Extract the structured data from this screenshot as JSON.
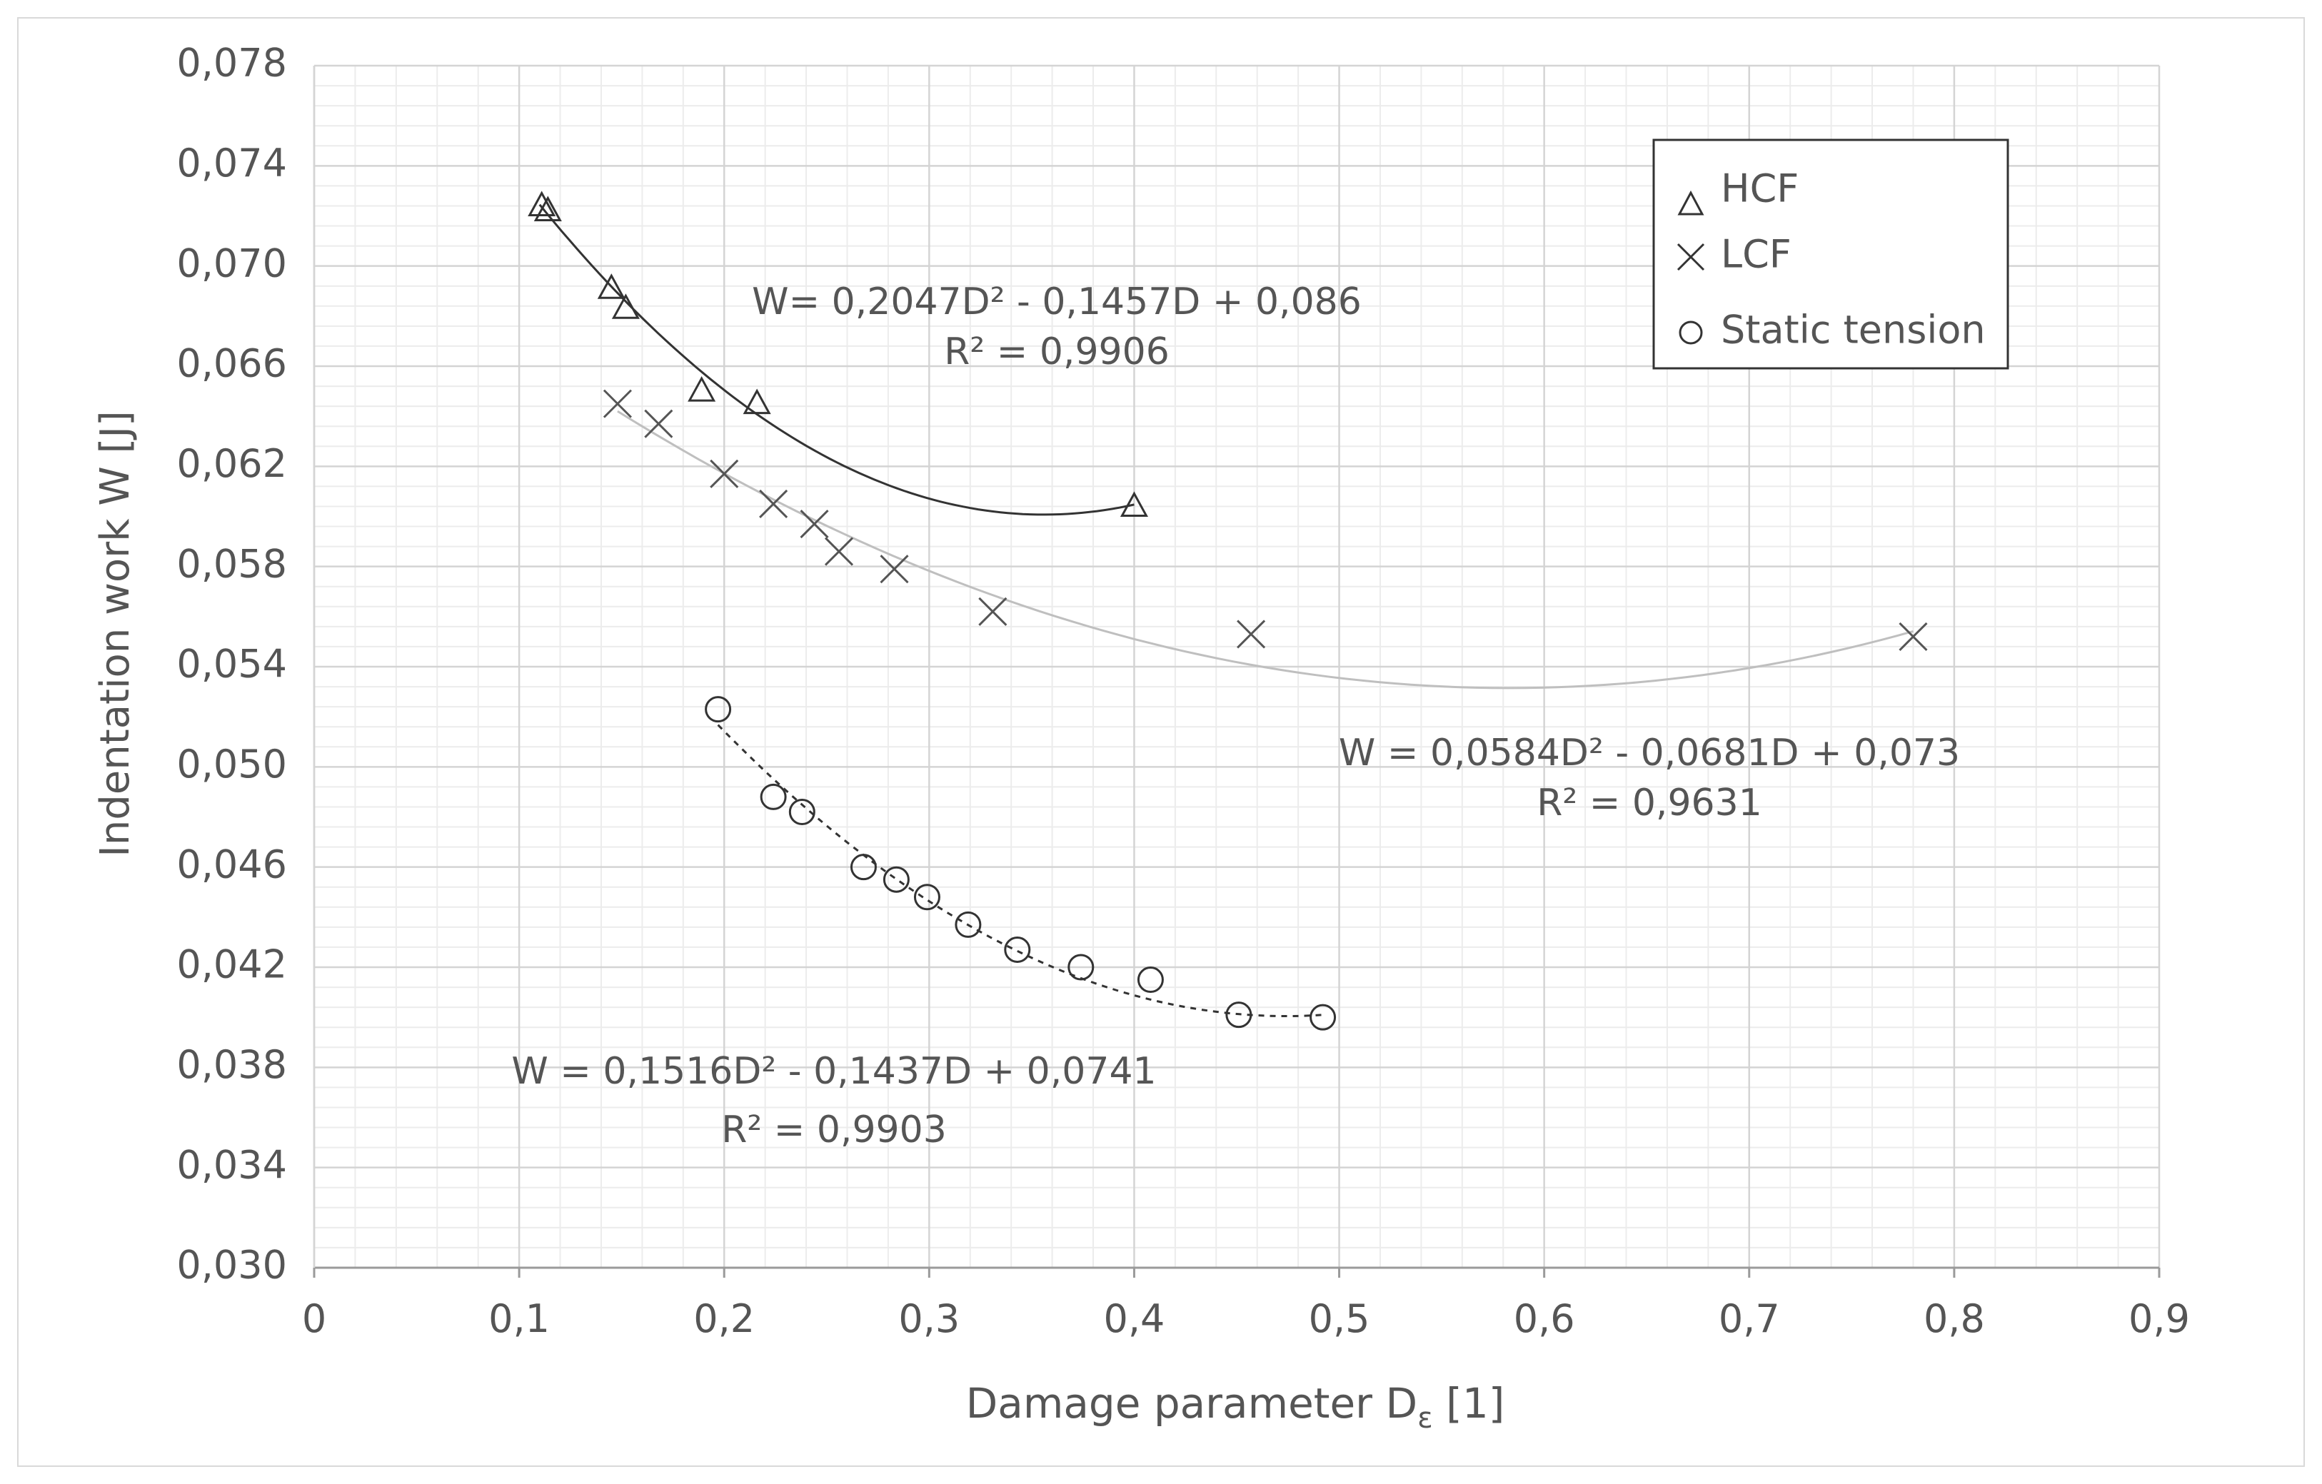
{
  "chart_data": {
    "type": "scatter",
    "xlabel_main": "Damage parameter D",
    "xlabel_sub": "ε",
    "xlabel_tail": " [1]",
    "ylabel": "Indentation work W [J]",
    "xlim": [
      0,
      0.9
    ],
    "ylim": [
      0.03,
      0.078
    ],
    "x_ticks": [
      0,
      0.1,
      0.2,
      0.3,
      0.4,
      0.5,
      0.6,
      0.7,
      0.8,
      0.9
    ],
    "x_tick_labels": [
      "0",
      "0,1",
      "0,2",
      "0,3",
      "0,4",
      "0,5",
      "0,6",
      "0,7",
      "0,8",
      "0,9"
    ],
    "y_ticks": [
      0.03,
      0.034,
      0.038,
      0.042,
      0.046,
      0.05,
      0.054,
      0.058,
      0.062,
      0.066,
      0.07,
      0.074,
      0.078
    ],
    "y_tick_labels": [
      "0,030",
      "0,034",
      "0,038",
      "0,042",
      "0,046",
      "0,050",
      "0,054",
      "0,058",
      "0,062",
      "0,066",
      "0,070",
      "0,074",
      "0,078"
    ],
    "grid": true,
    "legend_position": "top-right",
    "series": [
      {
        "name": "HCF",
        "marker": "triangle",
        "color": "#333333",
        "points": [
          [
            0.111,
            0.0724
          ],
          [
            0.114,
            0.0722
          ],
          [
            0.145,
            0.0691
          ],
          [
            0.152,
            0.0683
          ],
          [
            0.189,
            0.065
          ],
          [
            0.216,
            0.0645
          ],
          [
            0.4,
            0.0604
          ]
        ],
        "fit": {
          "a": 0.2047,
          "b": -0.1457,
          "c": 0.086,
          "x_range": [
            0.11,
            0.4
          ],
          "color": "#333333",
          "dash": "none",
          "width": 3
        },
        "equation": "W= 0,2047D² - 0,1457D + 0,086",
        "r2": "R² = 0,9906"
      },
      {
        "name": "LCF",
        "marker": "x",
        "color": "#555555",
        "points": [
          [
            0.148,
            0.0645
          ],
          [
            0.168,
            0.0637
          ],
          [
            0.2,
            0.0617
          ],
          [
            0.224,
            0.0605
          ],
          [
            0.244,
            0.0597
          ],
          [
            0.256,
            0.0586
          ],
          [
            0.283,
            0.0579
          ],
          [
            0.331,
            0.0562
          ],
          [
            0.457,
            0.0553
          ],
          [
            0.78,
            0.0552
          ]
        ],
        "fit": {
          "a": 0.0584,
          "b": -0.0681,
          "c": 0.073,
          "x_range": [
            0.148,
            0.78
          ],
          "color": "#bfbfbf",
          "dash": "none",
          "width": 3
        },
        "equation": "W = 0,0584D² - 0,0681D + 0,073",
        "r2": "R² = 0,9631"
      },
      {
        "name": "Static tension",
        "marker": "circle",
        "color": "#333333",
        "points": [
          [
            0.197,
            0.0523
          ],
          [
            0.224,
            0.0488
          ],
          [
            0.238,
            0.0482
          ],
          [
            0.268,
            0.046
          ],
          [
            0.284,
            0.0455
          ],
          [
            0.299,
            0.0448
          ],
          [
            0.319,
            0.0437
          ],
          [
            0.343,
            0.0427
          ],
          [
            0.374,
            0.042
          ],
          [
            0.408,
            0.0415
          ],
          [
            0.451,
            0.0401
          ],
          [
            0.492,
            0.04
          ]
        ],
        "fit": {
          "a": 0.1516,
          "b": -0.1437,
          "c": 0.0741,
          "x_range": [
            0.197,
            0.492
          ],
          "color": "#333333",
          "dash": "8,8",
          "width": 3
        },
        "equation": "W = 0,1516D² - 0,1437D + 0,0741",
        "r2": "R² = 0,9903"
      }
    ]
  }
}
